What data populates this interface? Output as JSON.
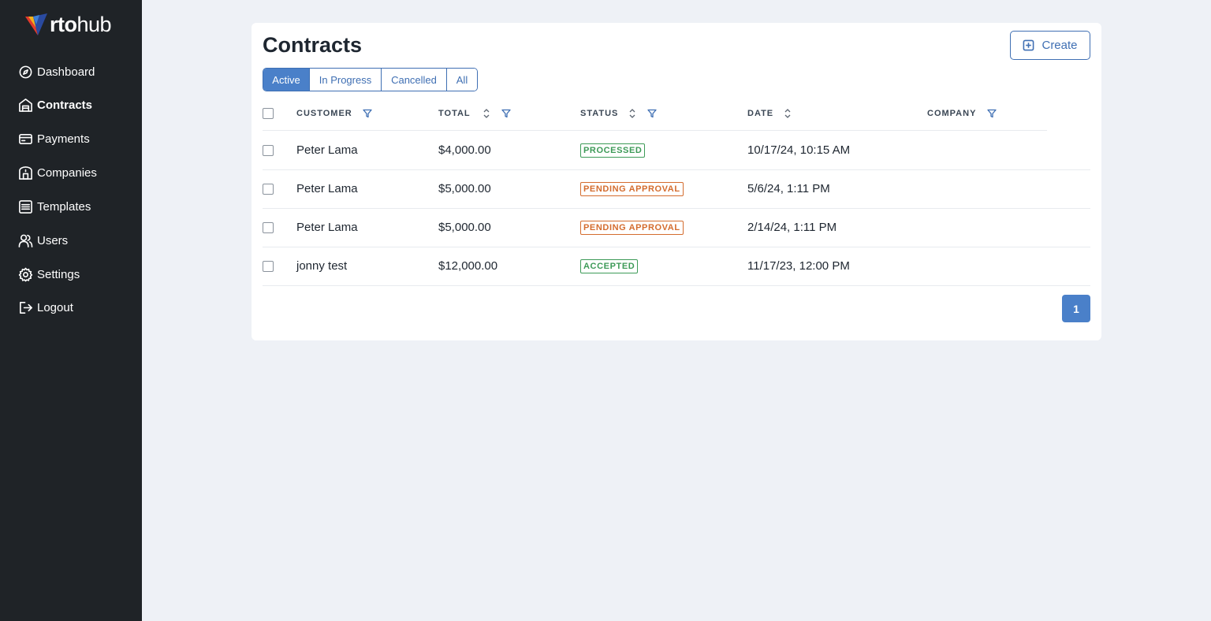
{
  "brand": {
    "bold": "rto",
    "light": "hub"
  },
  "sidebar": {
    "items": [
      {
        "label": "Dashboard",
        "icon": "dashboard-icon",
        "active": false
      },
      {
        "label": "Contracts",
        "icon": "contracts-icon",
        "active": true
      },
      {
        "label": "Payments",
        "icon": "payments-icon",
        "active": false
      },
      {
        "label": "Companies",
        "icon": "companies-icon",
        "active": false
      },
      {
        "label": "Templates",
        "icon": "templates-icon",
        "active": false
      },
      {
        "label": "Users",
        "icon": "users-icon",
        "active": false
      },
      {
        "label": "Settings",
        "icon": "settings-icon",
        "active": false
      },
      {
        "label": "Logout",
        "icon": "logout-icon",
        "active": false
      }
    ]
  },
  "main": {
    "title": "Contracts",
    "create_label": "Create",
    "tabs": [
      {
        "label": "Active",
        "active": true
      },
      {
        "label": "In Progress",
        "active": false
      },
      {
        "label": "Cancelled",
        "active": false
      },
      {
        "label": "All",
        "active": false
      }
    ],
    "columns": {
      "customer": "CUSTOMER",
      "total": "TOTAL",
      "status": "STATUS",
      "date": "DATE",
      "company": "COMPANY"
    },
    "rows": [
      {
        "customer": "Peter Lama",
        "total": "$4,000.00",
        "status": "PROCESSED",
        "status_color": "#3d9a57",
        "date": "10/17/24, 10:15 AM",
        "company": ""
      },
      {
        "customer": "Peter Lama",
        "total": "$5,000.00",
        "status": "PENDING APPROVAL",
        "status_color": "#d46c2e",
        "date": "5/6/24, 1:11 PM",
        "company": ""
      },
      {
        "customer": "Peter Lama",
        "total": "$5,000.00",
        "status": "PENDING APPROVAL",
        "status_color": "#d46c2e",
        "date": "2/14/24, 1:11 PM",
        "company": ""
      },
      {
        "customer": "jonny test",
        "total": "$12,000.00",
        "status": "ACCEPTED",
        "status_color": "#3d9a57",
        "date": "11/17/23, 12:00 PM",
        "company": ""
      }
    ],
    "pagination": {
      "current_page": "1"
    }
  },
  "colors": {
    "sidebar_bg": "#1f2327",
    "page_bg": "#eef1f6",
    "accent": "#4a80c9",
    "accent_dark": "#3f6fb3",
    "status_green": "#3d9a57",
    "status_orange": "#d46c2e"
  }
}
